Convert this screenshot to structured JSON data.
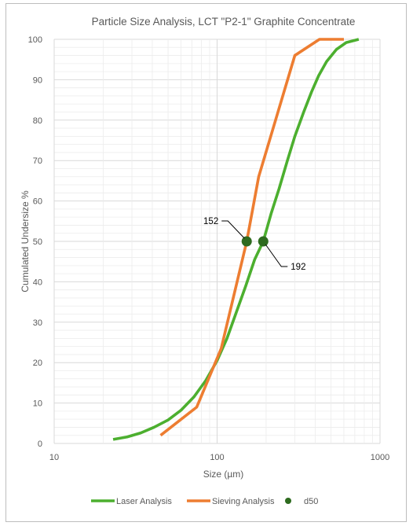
{
  "chart_data": {
    "type": "line",
    "title": "Particle Size Analysis, LCT \"P2-1\" Graphite Concentrate",
    "xlabel": "Size (µm)",
    "ylabel": "Cumulated Undersize %",
    "x_scale": "log",
    "xlim": [
      10,
      1000
    ],
    "ylim": [
      0,
      100
    ],
    "x_ticks": [
      "10",
      "100",
      "1000"
    ],
    "y_ticks": [
      "0",
      "10",
      "20",
      "30",
      "40",
      "50",
      "60",
      "70",
      "80",
      "90",
      "100"
    ],
    "grid": true,
    "legend_position": "bottom",
    "series": [
      {
        "name": "Laser Analysis",
        "color": "#4caf2f",
        "points": [
          [
            23,
            1
          ],
          [
            28,
            1.6
          ],
          [
            34,
            2.6
          ],
          [
            41,
            4.0
          ],
          [
            50,
            5.8
          ],
          [
            60,
            8.2
          ],
          [
            72,
            11.5
          ],
          [
            85,
            15.5
          ],
          [
            100,
            20.5
          ],
          [
            115,
            26
          ],
          [
            130,
            32
          ],
          [
            150,
            39
          ],
          [
            170,
            45.5
          ],
          [
            192,
            50
          ],
          [
            215,
            57
          ],
          [
            240,
            63
          ],
          [
            270,
            70
          ],
          [
            300,
            76
          ],
          [
            340,
            82
          ],
          [
            380,
            87
          ],
          [
            420,
            91
          ],
          [
            470,
            94.5
          ],
          [
            540,
            97.5
          ],
          [
            620,
            99.2
          ],
          [
            740,
            100
          ]
        ]
      },
      {
        "name": "Sieving Analysis",
        "color": "#ed7d31",
        "points": [
          [
            45,
            2
          ],
          [
            75,
            9
          ],
          [
            106,
            23.5
          ],
          [
            152,
            50
          ],
          [
            180,
            66
          ],
          [
            300,
            96
          ],
          [
            425,
            100
          ],
          [
            600,
            100
          ]
        ]
      },
      {
        "name": "d50",
        "color": "#2e6b1f",
        "marker": "circle",
        "points": [
          [
            152,
            50
          ],
          [
            192,
            50
          ]
        ]
      }
    ],
    "annotations": [
      {
        "text": "152",
        "x": 152,
        "y": 50
      },
      {
        "text": "192",
        "x": 192,
        "y": 50
      }
    ]
  }
}
